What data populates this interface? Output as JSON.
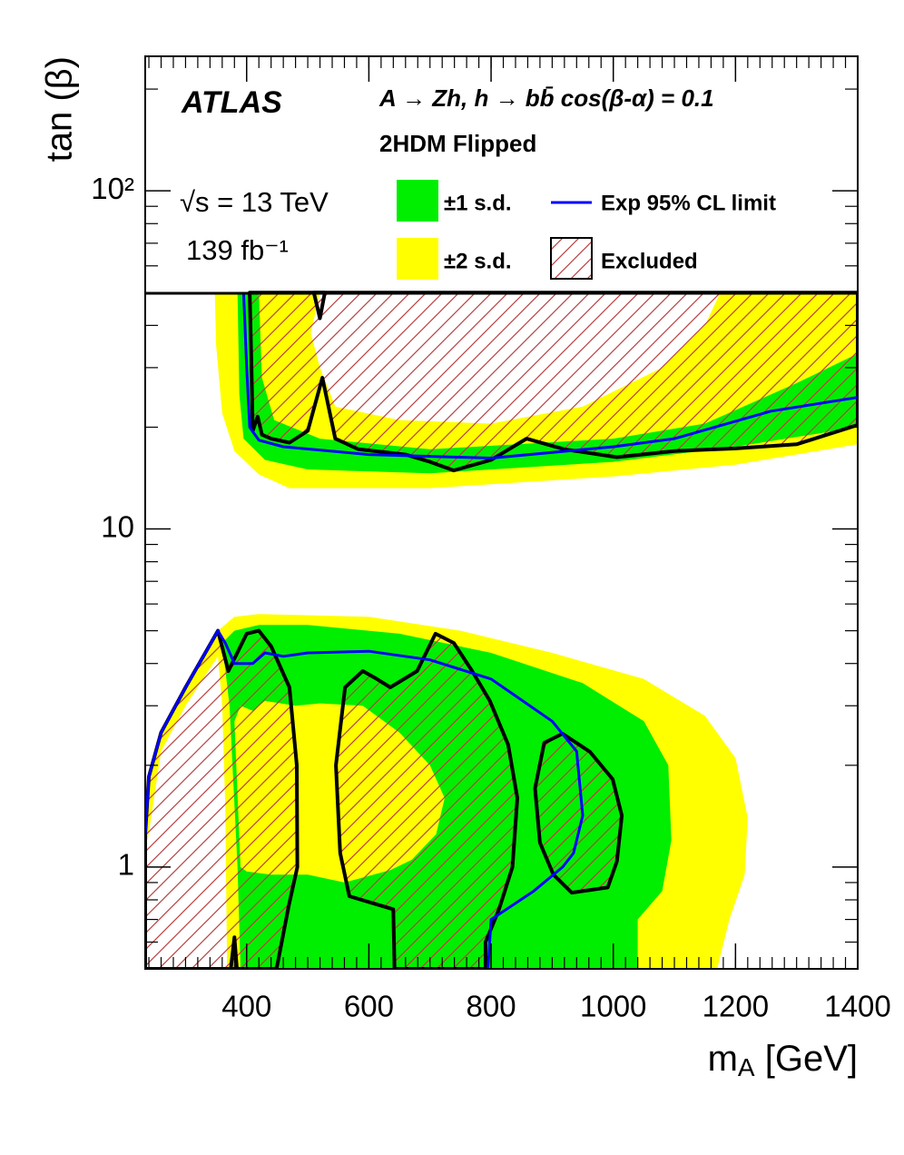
{
  "chart_data": {
    "type": "exclusion",
    "experiment": "ATLAS",
    "title": "A → Zh, h → bb̄  cos(β-α) = 0.1",
    "subtitle": "2HDM Flipped",
    "energy": "√s = 13 TeV",
    "luminosity": "139 fb⁻¹",
    "x_label": {
      "main": "m",
      "sub": "A",
      "unit": " [GeV]"
    },
    "y_label": "tan (β)",
    "xlim": [
      234,
      1400
    ],
    "ylim": [
      0.5,
      250
    ],
    "log_y": true,
    "xticks": [
      400,
      600,
      800,
      1000,
      1200,
      1400
    ],
    "yticks": [
      1,
      10,
      {
        "value": 100,
        "label": "10²"
      }
    ],
    "series": [
      {
        "name": "±2 s.d.",
        "color": "#ffff00",
        "kind": "band",
        "regions": [
          {
            "x": [
              348,
              350,
              360,
              380,
              420,
              470,
              700,
              1000,
              1200,
              1400,
              1400
            ],
            "y": [
              50,
              35,
              22,
              17,
              14.5,
              13.2,
              13.2,
              14.3,
              15.5,
              17.8,
              50
            ],
            "holes": [
              {
                "x": [
                  520,
                  505,
                  520,
                  545,
                  650,
                  800,
                  950,
                  1080,
                  1150,
                  1175
                ],
                "y": [
                  50,
                  38,
                  30,
                  23,
                  21,
                  20.5,
                  23,
                  30,
                  40,
                  50
                ]
              }
            ]
          },
          {
            "x": [
              234,
              240,
              260,
              300,
              353,
              380,
              420,
              600,
              750,
              900,
              1050,
              1150,
              1200,
              1220,
              1215,
              1190,
              1170,
              368,
              365,
              360,
              353,
              300,
              260,
              238
            ],
            "y": [
              1.25,
              1.85,
              2.5,
              3.4,
              5.0,
              5.5,
              5.6,
              5.5,
              5.0,
              4.3,
              3.6,
              2.8,
              2.1,
              1.4,
              0.95,
              0.7,
              0.5,
              0.5,
              1.5,
              3,
              4.2,
              3.0,
              2.2,
              1.2
            ],
            "holes": []
          }
        ]
      },
      {
        "name": "±1 s.d.",
        "color": "#00ee00",
        "kind": "band",
        "regions": [
          {
            "x": [
              385,
              388,
              395,
              430,
              500,
              700,
              1000,
              1200,
              1400,
              1400
            ],
            "y": [
              50,
              25,
              18.5,
              16,
              15,
              14.6,
              15.8,
              17.5,
              20,
              50
            ],
            "holes": [
              {
                "x": [
                  420,
                  425,
                  445,
                  520,
                  700,
                  1000,
                  1150,
                  1300,
                  1400,
                  1400
                ],
                "y": [
                  50,
                  28,
                  21,
                  18.5,
                  17.2,
                  18.5,
                  20.5,
                  27,
                  33,
                  50
                ]
              }
            ]
          },
          {
            "x": [
              360,
              380,
              420,
              500,
              650,
              800,
              950,
              1050,
              1090,
              1095,
              1080,
              1040,
              1040,
              390,
              385,
              372
            ],
            "y": [
              4.6,
              5.0,
              5.2,
              5.2,
              4.9,
              4.3,
              3.5,
              2.7,
              2.0,
              1.2,
              0.85,
              0.7,
              0.5,
              0.5,
              1.0,
              3.0
            ],
            "holes": [
              {
                "x": [
                  390,
                  380,
                  390,
                  410,
                  430,
                  480,
                  520,
                  590,
                  650,
                  700,
                  724,
                  710,
                  670,
                  635,
                  560,
                  500,
                  440,
                  400
                ],
                "y": [
                  1.0,
                  2.7,
                  3.0,
                  2.9,
                  3.1,
                  3.0,
                  3.05,
                  3.0,
                  2.5,
                  2.0,
                  1.6,
                  1.25,
                  1.05,
                  0.98,
                  0.9,
                  0.95,
                  0.95,
                  0.97
                ]
              }
            ]
          }
        ]
      },
      {
        "name": "Exp 95% CL limit",
        "color": "#0000ff",
        "kind": "line",
        "lines": [
          {
            "x": [
              395,
              400,
              405,
              420,
              460,
              600,
              800,
              1000,
              1100,
              1258,
              1400
            ],
            "y": [
              50,
              30,
              20,
              18.3,
              17.5,
              16.6,
              16.2,
              17.5,
              18.5,
              22.3,
              24.5
            ]
          },
          {
            "x": [
              234,
              240,
              260,
              300,
              353,
              365,
              380,
              410,
              430,
              460,
              500,
              600,
              700,
              800,
              900,
              940,
              950,
              935,
              917,
              870,
              800,
              795
            ],
            "y": [
              1.25,
              1.85,
              2.5,
              3.4,
              5.0,
              4.6,
              4.0,
              4.0,
              4.3,
              4.2,
              4.3,
              4.35,
              4.1,
              3.6,
              2.7,
              2.2,
              1.42,
              1.1,
              1.0,
              0.85,
              0.7,
              0.5
            ]
          }
        ]
      },
      {
        "name": "Excluded",
        "color": "#000000",
        "hatch_color": "#b84040",
        "kind": "hatched",
        "lines": [
          {
            "x": [
              405,
              408,
              410,
              418,
              425,
              440,
              470,
              500,
              524,
              545,
              583,
              660,
              700,
              739,
              800,
              858,
              920,
              1006,
              1100,
              1200,
              1300,
              1400,
              1400
            ],
            "y": [
              50,
              30,
              19.5,
              21.5,
              19,
              18.5,
              18,
              19.5,
              28,
              18.5,
              17.2,
              16.6,
              15.8,
              14.9,
              16,
              18.5,
              17.2,
              16.3,
              17,
              17.3,
              17.8,
              20.3,
              50
            ]
          },
          {
            "x": [
              510,
              520,
              528
            ],
            "y": [
              50,
              42,
              50
            ]
          },
          {
            "x": [
              234,
              240,
              260,
              300,
              353,
              370,
              400,
              420,
              440,
              470,
              482,
              483,
              469,
              449,
              234
            ],
            "y": [
              1.25,
              1.85,
              2.5,
              3.4,
              5.0,
              3.8,
              4.9,
              5.0,
              4.5,
              3.4,
              2.0,
              1.0,
              0.77,
              0.5,
              0.5
            ]
          },
          {
            "x": [
              374,
              380,
              384
            ],
            "y": [
              0.5,
              0.62,
              0.5
            ]
          },
          {
            "x": [
              642,
              640,
              568,
              553,
              546,
              561,
              590,
              613,
              635,
              679,
              709,
              739,
              769,
              798,
              828,
              843,
              835,
              813,
              791,
              791
            ],
            "y": [
              0.5,
              0.75,
              0.82,
              1.1,
              2.0,
              3.4,
              3.8,
              3.6,
              3.4,
              3.8,
              4.9,
              4.6,
              3.8,
              3.1,
              2.3,
              1.6,
              1.0,
              0.75,
              0.6,
              0.5
            ]
          },
          {
            "x": [
              887,
              917,
              962,
              999,
              1014,
              1006,
              991,
              932,
              902,
              880,
              872,
              887
            ],
            "y": [
              2.33,
              2.48,
              2.19,
              1.82,
              1.42,
              1.04,
              0.87,
              0.84,
              0.95,
              1.18,
              1.71,
              2.33
            ]
          }
        ]
      }
    ]
  }
}
